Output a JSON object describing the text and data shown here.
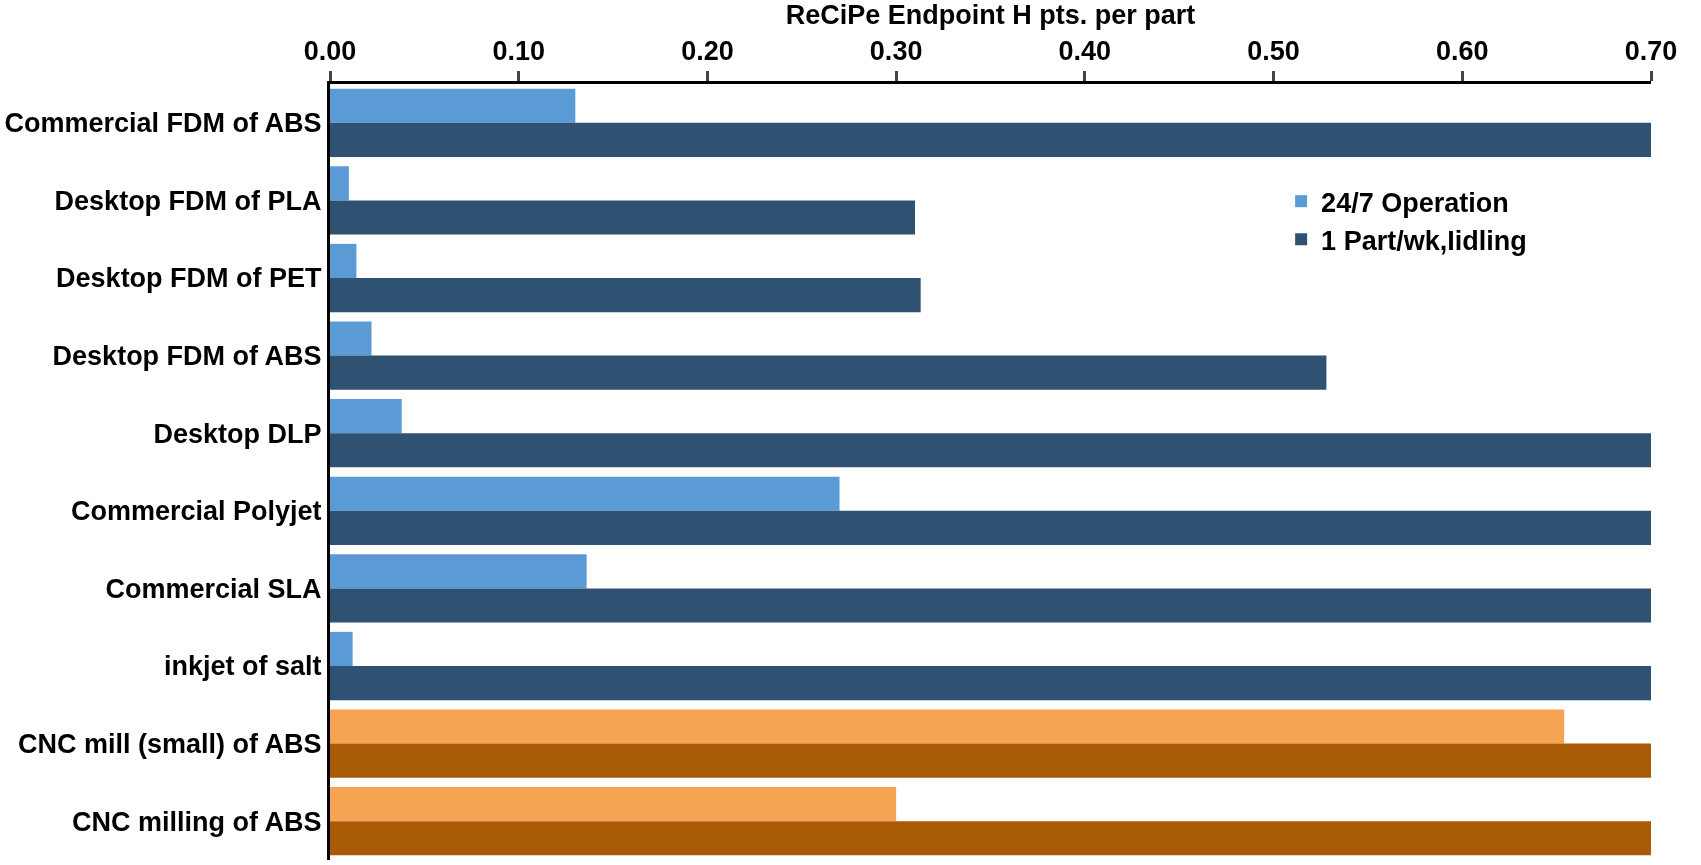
{
  "chart_data": {
    "type": "bar",
    "orientation": "horizontal",
    "xlabel": "ReCiPe Endpoint H pts. per part",
    "categories": [
      "Commercial FDM of ABS",
      "Desktop FDM of PLA",
      "Desktop FDM of PET",
      "Desktop FDM of ABS",
      "Desktop DLP",
      "Commercial Polyjet",
      "Commercial SLA",
      "inkjet of salt",
      "CNC mill (small) of ABS",
      "CNC milling of ABS"
    ],
    "series": [
      {
        "name": "24/7 Operation",
        "color": "#5b9bd5",
        "colors": [
          "#5b9bd5",
          "#5b9bd5",
          "#5b9bd5",
          "#5b9bd5",
          "#5b9bd5",
          "#5b9bd5",
          "#5b9bd5",
          "#5b9bd5",
          "#f7a354",
          "#f7a354"
        ],
        "values": [
          0.13,
          0.01,
          0.014,
          0.022,
          0.038,
          0.27,
          0.136,
          0.012,
          0.654,
          0.3
        ]
      },
      {
        "name": "1 Part/wk,Iidling",
        "color": "#2f5273",
        "colors": [
          "#2f5273",
          "#2f5273",
          "#2f5273",
          "#2f5273",
          "#2f5273",
          "#2f5273",
          "#2f5273",
          "#2f5273",
          "#a85a05",
          "#a85a05"
        ],
        "values": [
          0.7,
          0.31,
          0.313,
          0.528,
          0.7,
          0.7,
          0.7,
          0.7,
          0.7,
          0.7
        ]
      }
    ],
    "xlim": [
      0,
      0.7
    ],
    "xticks": [
      {
        "value": 0,
        "label": "0.00"
      },
      {
        "value": 0.1,
        "label": "0.10"
      },
      {
        "value": 0.2,
        "label": "0.20"
      },
      {
        "value": 0.3,
        "label": "0.30"
      },
      {
        "value": 0.4,
        "label": "0.40"
      },
      {
        "value": 0.5,
        "label": "0.50"
      },
      {
        "value": 0.6,
        "label": "0.60"
      },
      {
        "value": 0.7,
        "label": "0.70"
      }
    ],
    "grid": false,
    "legend": "top right"
  }
}
